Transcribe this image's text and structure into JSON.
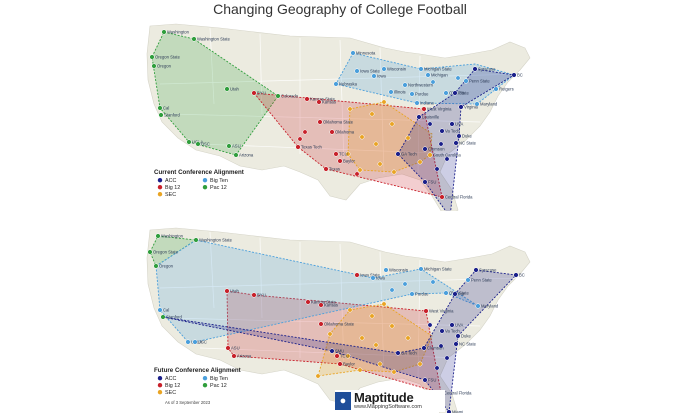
{
  "title": "Changing Geography of College Football",
  "colors": {
    "land": "#ecebe0",
    "border": "#ffffff",
    "ACC": "#1a1f8a",
    "Big Ten": "#4a9fdc",
    "Big 12": "#c8202a",
    "SEC": "#e9a423",
    "Pac 12": "#2f9e3c"
  },
  "maps": [
    {
      "legend_title": "Current Conference Alignment",
      "legend": [
        {
          "name": "ACC",
          "color": "#1a1f8a"
        },
        {
          "name": "Big Ten",
          "color": "#4a9fdc"
        },
        {
          "name": "Big 12",
          "color": "#c8202a"
        },
        {
          "name": "Pac 12",
          "color": "#2f9e3c"
        },
        {
          "name": "SEC",
          "color": "#e9a423"
        }
      ],
      "as_of": "",
      "labels": [
        "Washington",
        "Washington State",
        "Oregon State",
        "Oregon",
        "Cal",
        "Stanford",
        "UCLA",
        "USC",
        "ASU",
        "Arizona",
        "Utah",
        "Colorado",
        "BYU",
        "Kansas State",
        "Kansas",
        "Oklahoma State",
        "Oklahoma",
        "Texas Tech",
        "TCU",
        "Baylor",
        "Texas",
        "Iowa State",
        "Iowa",
        "Minnesota",
        "Wisconsin",
        "Nebraska",
        "Michigan State",
        "Michigan",
        "Northwestern",
        "Illinois",
        "Purdue",
        "Indiana",
        "Ohio State",
        "Penn State",
        "Rutgers",
        "Maryland",
        "Syracuse",
        "BC",
        "Pitt",
        "Louisville",
        "Virginia",
        "West Virginia",
        "UVA",
        "Va Tech",
        "Duke",
        "NC State",
        "Clemson",
        "GA Tech",
        "South Carolina",
        "FSU",
        "Central Florida",
        "Miami"
      ]
    },
    {
      "legend_title": "Future Conference Alignment",
      "legend": [
        {
          "name": "ACC",
          "color": "#1a1f8a"
        },
        {
          "name": "Big Ten",
          "color": "#4a9fdc"
        },
        {
          "name": "Big 12",
          "color": "#c8202a"
        },
        {
          "name": "Pac 12",
          "color": "#2f9e3c"
        },
        {
          "name": "SEC",
          "color": "#e9a423"
        }
      ],
      "as_of": "As of 3 September 2023",
      "labels": [
        "Washington",
        "Washington State",
        "Oregon State",
        "Oregon",
        "Cal",
        "Stanford",
        "UCLA",
        "USC",
        "ASU",
        "Arizona",
        "Utah",
        "BYU",
        "Kansas State",
        "Kansas",
        "Oklahoma State",
        "SMU",
        "TCU",
        "Baylor",
        "Iowa State",
        "Iowa",
        "Wisconsin",
        "Michigan State",
        "Purdue",
        "Ohio State",
        "Penn State",
        "Maryland",
        "Syracuse",
        "BC",
        "Pitt",
        "West Virginia",
        "UVA",
        "Va Tech",
        "Duke",
        "NC State",
        "Clemson",
        "GA Tech",
        "FSU",
        "Central Florida",
        "Miami"
      ]
    }
  ],
  "logo": {
    "name": "Maptitude",
    "url": "www.MappingSoftware.com"
  }
}
